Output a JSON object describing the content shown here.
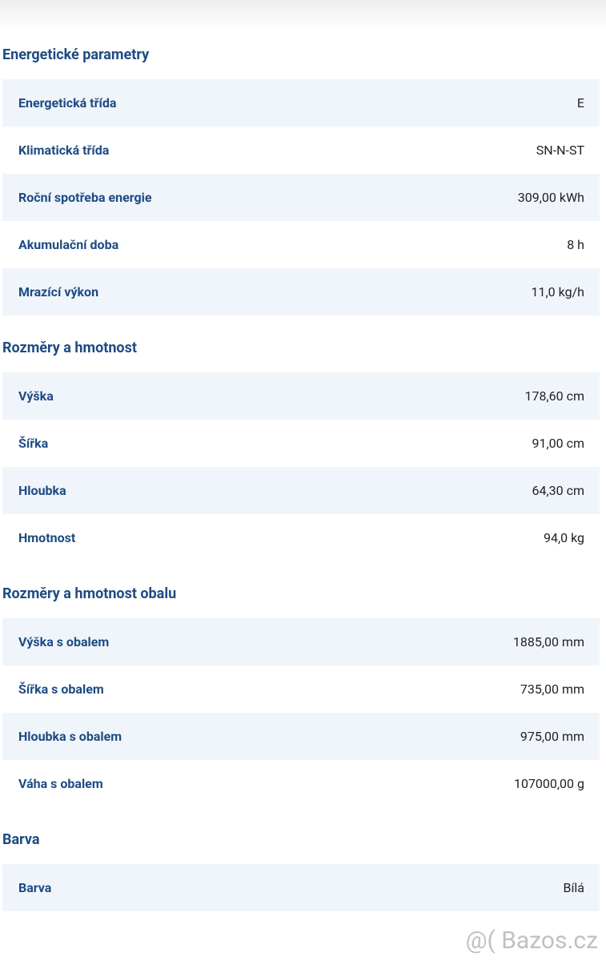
{
  "sections": [
    {
      "title": "Energetické parametry",
      "rows": [
        [
          "Energetická třída",
          "E"
        ],
        [
          "Klimatická třída",
          "SN-N-ST"
        ],
        [
          "Roční spotřeba energie",
          "309,00 kWh"
        ],
        [
          "Akumulační doba",
          "8 h"
        ],
        [
          "Mrazící výkon",
          "11,0 kg/h"
        ]
      ]
    },
    {
      "title": "Rozměry a hmotnost",
      "rows": [
        [
          "Výška",
          "178,60 cm"
        ],
        [
          "Šířka",
          "91,00 cm"
        ],
        [
          "Hloubka",
          "64,30 cm"
        ],
        [
          "Hmotnost",
          "94,0 kg"
        ]
      ]
    },
    {
      "title": "Rozměry a hmotnost obalu",
      "rows": [
        [
          "Výška s obalem",
          "1885,00 mm"
        ],
        [
          "Šířka s obalem",
          "735,00 mm"
        ],
        [
          "Hloubka s obalem",
          "975,00 mm"
        ],
        [
          "Váha s obalem",
          "107000,00 g"
        ]
      ]
    },
    {
      "title": "Barva",
      "rows": [
        [
          "Barva",
          "Bílá"
        ]
      ]
    }
  ],
  "watermark": "@( Bazos.cz"
}
